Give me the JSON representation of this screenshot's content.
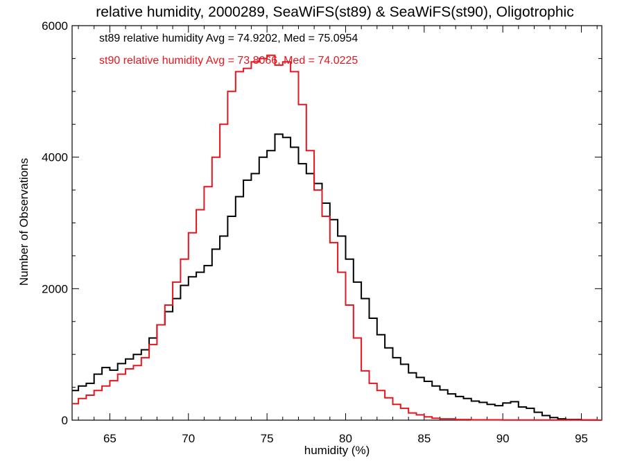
{
  "chart_data": {
    "type": "line",
    "step": true,
    "title": "relative humidity, 2000289, SeaWiFS(st89) & SeaWiFS(st90), Oligotrophic",
    "xlabel": "humidity (%)",
    "ylabel": "Number of Observations",
    "xlim": [
      62.6,
      96.3
    ],
    "ylim": [
      0,
      6000
    ],
    "xticks": [
      65,
      70,
      75,
      80,
      85,
      90,
      95
    ],
    "yticks": [
      0,
      2000,
      4000,
      6000
    ],
    "grid": false,
    "legend": [
      {
        "text": "st89 relative humidity Avg = 74.9202, Med = 75.0954",
        "color": "#000000"
      },
      {
        "text": "st90 relative humidity Avg = 73.8066, Med = 74.0225",
        "color": "#e8141e"
      }
    ],
    "series": [
      {
        "name": "st89",
        "color": "#000000",
        "points": [
          [
            62.6,
            450
          ],
          [
            63.0,
            520
          ],
          [
            63.5,
            560
          ],
          [
            64.0,
            700
          ],
          [
            64.5,
            800
          ],
          [
            65.0,
            760
          ],
          [
            65.5,
            860
          ],
          [
            66.0,
            930
          ],
          [
            66.5,
            1000
          ],
          [
            67.0,
            1070
          ],
          [
            67.5,
            1250
          ],
          [
            68.0,
            1450
          ],
          [
            68.5,
            1650
          ],
          [
            69.0,
            1850
          ],
          [
            69.5,
            2050
          ],
          [
            70.0,
            2180
          ],
          [
            70.5,
            2250
          ],
          [
            71.0,
            2350
          ],
          [
            71.5,
            2600
          ],
          [
            72.0,
            2800
          ],
          [
            72.5,
            3100
          ],
          [
            73.0,
            3400
          ],
          [
            73.5,
            3650
          ],
          [
            74.0,
            3750
          ],
          [
            74.5,
            4000
          ],
          [
            75.0,
            4100
          ],
          [
            75.5,
            4350
          ],
          [
            76.0,
            4300
          ],
          [
            76.5,
            4150
          ],
          [
            77.0,
            3900
          ],
          [
            77.5,
            3750
          ],
          [
            78.0,
            3600
          ],
          [
            78.5,
            3300
          ],
          [
            79.0,
            3050
          ],
          [
            79.5,
            2800
          ],
          [
            80.0,
            2450
          ],
          [
            80.5,
            2100
          ],
          [
            81.0,
            1850
          ],
          [
            81.5,
            1550
          ],
          [
            82.0,
            1300
          ],
          [
            82.5,
            1100
          ],
          [
            83.0,
            950
          ],
          [
            83.5,
            850
          ],
          [
            84.0,
            720
          ],
          [
            84.5,
            650
          ],
          [
            85.0,
            590
          ],
          [
            85.5,
            520
          ],
          [
            86.0,
            460
          ],
          [
            86.5,
            400
          ],
          [
            87.0,
            360
          ],
          [
            87.5,
            330
          ],
          [
            88.0,
            290
          ],
          [
            88.5,
            270
          ],
          [
            89.0,
            240
          ],
          [
            89.5,
            220
          ],
          [
            90.0,
            260
          ],
          [
            90.5,
            280
          ],
          [
            91.0,
            200
          ],
          [
            91.5,
            180
          ],
          [
            92.0,
            120
          ],
          [
            92.5,
            70
          ],
          [
            93.0,
            40
          ],
          [
            93.5,
            20
          ],
          [
            94.0,
            10
          ],
          [
            95.0,
            3
          ],
          [
            96.0,
            0
          ]
        ]
      },
      {
        "name": "st90",
        "color": "#e8141e",
        "points": [
          [
            62.6,
            250
          ],
          [
            63.0,
            330
          ],
          [
            63.5,
            380
          ],
          [
            64.0,
            450
          ],
          [
            64.5,
            520
          ],
          [
            65.0,
            600
          ],
          [
            65.5,
            700
          ],
          [
            66.0,
            780
          ],
          [
            66.5,
            830
          ],
          [
            67.0,
            950
          ],
          [
            67.5,
            1150
          ],
          [
            68.0,
            1450
          ],
          [
            68.5,
            1750
          ],
          [
            69.0,
            2100
          ],
          [
            69.5,
            2450
          ],
          [
            70.0,
            2850
          ],
          [
            70.5,
            3200
          ],
          [
            71.0,
            3550
          ],
          [
            71.5,
            4000
          ],
          [
            72.0,
            4500
          ],
          [
            72.5,
            5000
          ],
          [
            73.0,
            5300
          ],
          [
            73.5,
            5350
          ],
          [
            74.0,
            5450
          ],
          [
            74.5,
            5500
          ],
          [
            75.0,
            5550
          ],
          [
            75.5,
            5400
          ],
          [
            76.0,
            5450
          ],
          [
            76.5,
            5300
          ],
          [
            77.0,
            4800
          ],
          [
            77.5,
            4100
          ],
          [
            78.0,
            3500
          ],
          [
            78.5,
            3100
          ],
          [
            79.0,
            2700
          ],
          [
            79.5,
            2250
          ],
          [
            80.0,
            1750
          ],
          [
            80.5,
            1250
          ],
          [
            81.0,
            750
          ],
          [
            81.5,
            560
          ],
          [
            82.0,
            450
          ],
          [
            82.5,
            340
          ],
          [
            83.0,
            240
          ],
          [
            83.5,
            180
          ],
          [
            84.0,
            110
          ],
          [
            84.5,
            80
          ],
          [
            85.0,
            50
          ],
          [
            85.5,
            30
          ],
          [
            86.0,
            20
          ],
          [
            87.0,
            10
          ],
          [
            88.0,
            5
          ],
          [
            90.0,
            2
          ],
          [
            96.0,
            0
          ]
        ]
      }
    ]
  }
}
